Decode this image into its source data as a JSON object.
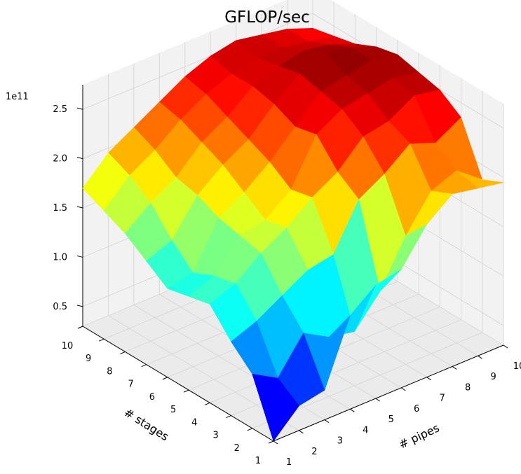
{
  "chart_data": {
    "type": "surface",
    "title": "GFLOP/sec",
    "xlabel": "# pipes",
    "ylabel": "# stages",
    "zlabel": "",
    "z_offset_text": "1e11",
    "x": [
      1,
      2,
      3,
      4,
      5,
      6,
      7,
      8,
      9,
      10
    ],
    "y": [
      1,
      2,
      3,
      4,
      5,
      6,
      7,
      8,
      9,
      10
    ],
    "x_ticks": [
      "1",
      "2",
      "3",
      "4",
      "5",
      "6",
      "7",
      "8",
      "9",
      "10"
    ],
    "y_ticks": [
      "1",
      "2",
      "3",
      "4",
      "5",
      "6",
      "7",
      "8",
      "9",
      "10"
    ],
    "z_ticks": [
      "0.5",
      "1.0",
      "1.5",
      "2.0",
      "2.5"
    ],
    "zlim": [
      0.3,
      2.75
    ],
    "z_scale": 100000000000.0,
    "colormap": "jet",
    "grid": true,
    "z_values": [
      [
        0.3,
        0.55,
        0.6,
        1.25,
        1.45,
        1.5,
        1.85,
        2.05,
        2.0,
        1.95
      ],
      [
        0.85,
        0.7,
        1.05,
        0.9,
        0.85,
        1.15,
        1.6,
        1.95,
        2.05,
        1.85
      ],
      [
        1.05,
        1.15,
        1.3,
        1.45,
        1.5,
        1.95,
        2.1,
        2.3,
        2.2,
        2.35
      ],
      [
        1.3,
        1.4,
        1.6,
        1.75,
        1.95,
        2.1,
        2.35,
        2.4,
        2.55,
        2.5
      ],
      [
        1.25,
        1.35,
        1.65,
        1.7,
        1.9,
        2.35,
        2.5,
        2.55,
        2.6,
        2.55
      ],
      [
        1.2,
        1.25,
        1.7,
        1.85,
        2.05,
        2.3,
        2.55,
        2.6,
        2.65,
        2.6
      ],
      [
        1.35,
        1.45,
        1.8,
        2.0,
        2.15,
        2.4,
        2.6,
        2.7,
        2.65,
        2.55
      ],
      [
        1.5,
        1.7,
        1.85,
        2.1,
        2.25,
        2.45,
        2.55,
        2.6,
        2.55,
        2.45
      ],
      [
        1.6,
        1.85,
        2.0,
        2.2,
        2.35,
        2.45,
        2.5,
        2.5,
        2.45,
        2.4
      ],
      [
        1.7,
        1.95,
        2.1,
        2.25,
        2.4,
        2.5,
        2.55,
        2.5,
        2.45,
        2.35
      ]
    ]
  }
}
